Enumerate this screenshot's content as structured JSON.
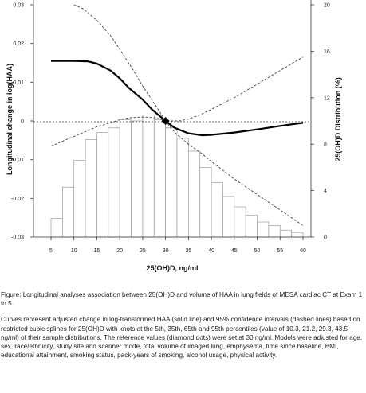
{
  "chart_data": {
    "type": "line",
    "xlabel": "25(OH)D, ng/ml",
    "ylabel": "Longitudinal change in log(HAA)",
    "y2label": "25(OH)D Distribution (%)",
    "xlim": [
      5,
      60
    ],
    "ylim": [
      -0.03,
      0.03
    ],
    "y2lim": [
      0,
      20
    ],
    "x_ticks": [
      "5",
      "10",
      "15",
      "20",
      "25",
      "30",
      "35",
      "40",
      "45",
      "50",
      "55",
      "60"
    ],
    "y_ticks": [
      "0.03",
      "0.02",
      "0.01",
      "0",
      "-0.01",
      "-0.02",
      "-0.03"
    ],
    "y2_ticks": [
      "20",
      "16",
      "12",
      "8",
      "4",
      "0"
    ],
    "reference": {
      "x": 30,
      "y": 0
    },
    "series": [
      {
        "style": "solid",
        "x": [
          5,
          10,
          13,
          15,
          18,
          20,
          22,
          25,
          27,
          30,
          32,
          35,
          38,
          40,
          45,
          50,
          55,
          60
        ],
        "y": [
          0.0155,
          0.0155,
          0.0154,
          0.0148,
          0.013,
          0.011,
          0.0085,
          0.0055,
          0.003,
          0.0,
          -0.0018,
          -0.0032,
          -0.0037,
          -0.0036,
          -0.003,
          -0.0022,
          -0.0013,
          -0.0005
        ]
      },
      {
        "style": "dashed",
        "x": [
          10,
          12,
          15,
          18,
          20,
          23,
          25,
          27,
          30,
          33,
          35,
          38,
          40,
          45,
          50,
          55,
          60
        ],
        "y": [
          0.03,
          0.029,
          0.026,
          0.022,
          0.0185,
          0.013,
          0.009,
          0.0055,
          0.0,
          0.0,
          0.0005,
          0.0018,
          0.003,
          0.006,
          0.0095,
          0.013,
          0.0165
        ]
      },
      {
        "style": "dashed",
        "x": [
          5,
          8,
          10,
          13,
          15,
          18,
          20,
          22,
          25,
          28,
          30,
          32,
          35,
          38,
          40,
          45,
          50,
          55,
          60
        ],
        "y": [
          -0.0065,
          -0.005,
          -0.004,
          -0.0025,
          -0.0015,
          -0.0005,
          0.0003,
          0.0008,
          0.001,
          0.0008,
          0.0,
          -0.003,
          -0.006,
          -0.0085,
          -0.0105,
          -0.015,
          -0.019,
          -0.023,
          -0.027
        ]
      }
    ],
    "histogram": {
      "bins": [
        [
          5,
          7.5
        ],
        [
          7.5,
          10
        ],
        [
          10,
          12.5
        ],
        [
          12.5,
          15
        ],
        [
          15,
          17.5
        ],
        [
          17.5,
          20
        ],
        [
          20,
          22.5
        ],
        [
          22.5,
          25
        ],
        [
          25,
          27.5
        ],
        [
          27.5,
          30
        ],
        [
          30,
          32.5
        ],
        [
          32.5,
          35
        ],
        [
          35,
          37.5
        ],
        [
          37.5,
          40
        ],
        [
          40,
          42.5
        ],
        [
          42.5,
          45
        ],
        [
          45,
          47.5
        ],
        [
          47.5,
          50
        ],
        [
          50,
          52.5
        ],
        [
          52.5,
          55
        ],
        [
          55,
          57.5
        ],
        [
          57.5,
          60
        ]
      ],
      "values": [
        1.6,
        4.3,
        6.6,
        8.4,
        9.0,
        9.4,
        10.1,
        10.0,
        10.5,
        10.1,
        9.4,
        8.5,
        7.4,
        6.0,
        4.7,
        3.5,
        2.6,
        1.9,
        1.3,
        1.0,
        0.6,
        0.4
      ]
    }
  },
  "caption": {
    "figure_title": "Figure: Longitudinal analyses association between 25(OH)D and volume of HAA in lung fields of MESA cardiac CT at Exam 1 to 5.",
    "description": "Curves represent adjusted change in log-transformed HAA (solid line) and 95% confidence intervals (dashed lines) based on restricted cubic splines for 25(OH)D with knots at the 5th, 35th, 65th and 95th percentiles (value of 10.3, 21.2, 29.3, 43.5 ng/ml) of their sample distributions. The reference values (diamond dots) were set at 30 ng/ml. Models were adjusted for age, sex, race/ethnicity, study site and scanner mode, total volume of imaged lung, emphysema, time since baseline, BMI, educational attainment, smoking status, pack-years of smoking, alcohol usage, physical activity."
  }
}
